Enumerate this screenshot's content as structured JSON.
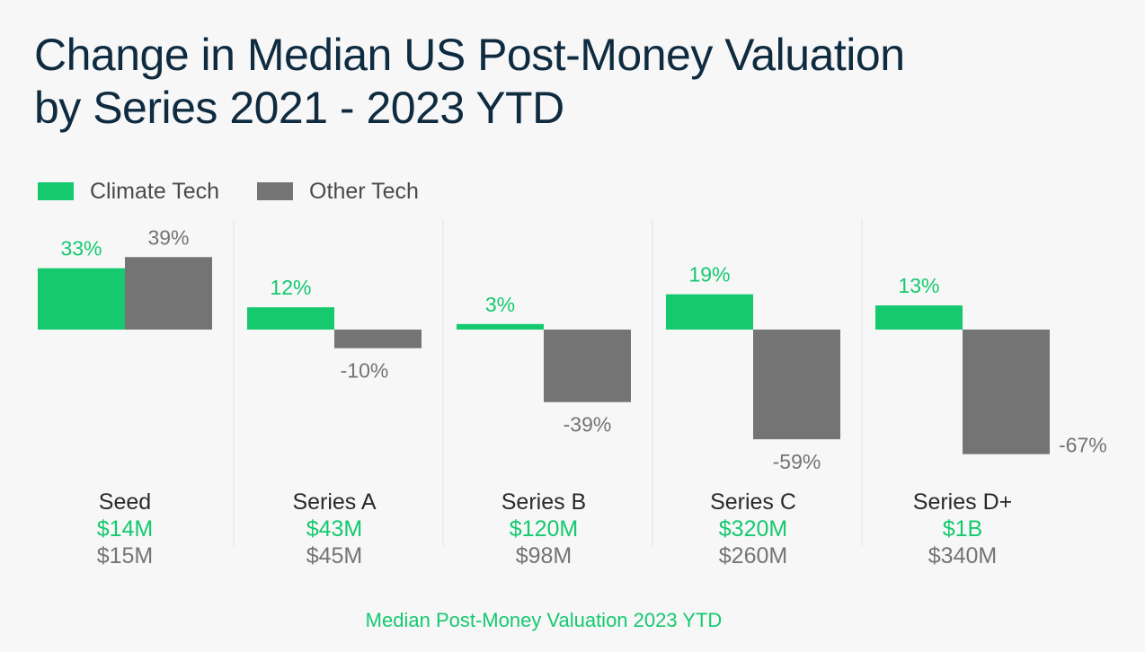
{
  "title_line1": "Change in Median US Post-Money Valuation",
  "title_line2": "by Series 2021 - 2023 YTD",
  "footer": "Median Post-Money Valuation 2023 YTD",
  "colors": {
    "climate": "#15c96e",
    "other": "#747474",
    "title": "#0f2b40",
    "divider": "#e3e3e6"
  },
  "chart_data": {
    "type": "bar",
    "title": "Change in Median US Post-Money Valuation by Series 2021 - 2023 YTD",
    "categories": [
      "Seed",
      "Series A",
      "Series B",
      "Series C",
      "Series D+"
    ],
    "unit": "%",
    "series": [
      {
        "name": "Climate Tech",
        "values": [
          33,
          12,
          3,
          19,
          13
        ],
        "labels": [
          "33%",
          "12%",
          "3%",
          "19%",
          "13%"
        ],
        "valuations": [
          "$14M",
          "$43M",
          "$120M",
          "$320M",
          "$1B"
        ]
      },
      {
        "name": "Other Tech",
        "values": [
          39,
          -10,
          -39,
          -59,
          -67
        ],
        "labels": [
          "39%",
          "-10%",
          "-39%",
          "-59%",
          "-67%"
        ],
        "valuations": [
          "$15M",
          "$45M",
          "$98M",
          "$260M",
          "$340M"
        ]
      }
    ],
    "legend": "top-left",
    "grid": false
  }
}
